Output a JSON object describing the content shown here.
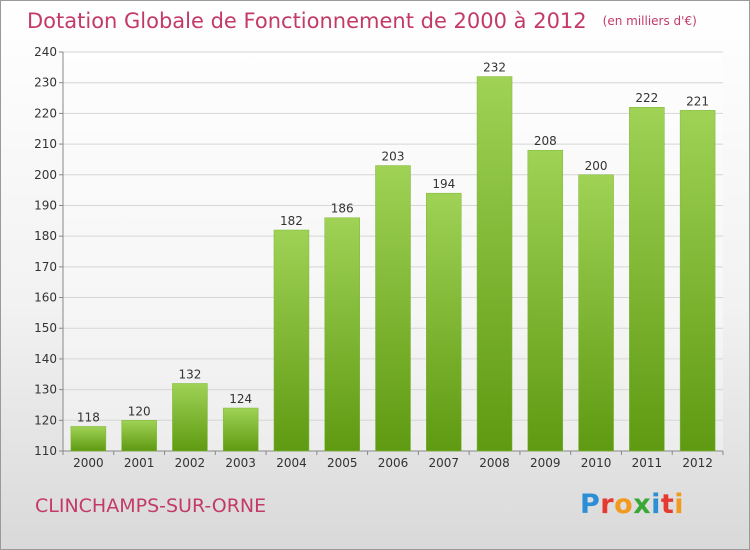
{
  "header": {
    "title": "Dotation Globale de Fonctionnement de 2000 à 2012",
    "subtitle": "(en milliers d'€)"
  },
  "footer": {
    "commune": "CLINCHAMPS-SUR-ORNE",
    "logo_letters": [
      "P",
      "r",
      "o",
      "x",
      "i",
      "t",
      "i"
    ]
  },
  "colors": {
    "title": "#c43a66",
    "bar_top": "#9fd255",
    "bar_bottom": "#5f9a12",
    "grid": "#d6d6d6"
  },
  "chart_data": {
    "type": "bar",
    "categories": [
      "2000",
      "2001",
      "2002",
      "2003",
      "2004",
      "2005",
      "2006",
      "2007",
      "2008",
      "2009",
      "2010",
      "2011",
      "2012"
    ],
    "values": [
      118,
      120,
      132,
      124,
      182,
      186,
      203,
      194,
      232,
      208,
      200,
      222,
      221
    ],
    "data_labels": [
      "118",
      "120",
      "132",
      "124",
      "182",
      "186",
      "203",
      "194",
      "232",
      "208",
      "200",
      "222",
      "221"
    ],
    "title": "Dotation Globale de Fonctionnement de 2000 à 2012",
    "xlabel": "",
    "ylabel": "",
    "ylim": [
      110,
      240
    ],
    "yticks": [
      110,
      120,
      130,
      140,
      150,
      160,
      170,
      180,
      190,
      200,
      210,
      220,
      230,
      240
    ],
    "grid": true
  }
}
